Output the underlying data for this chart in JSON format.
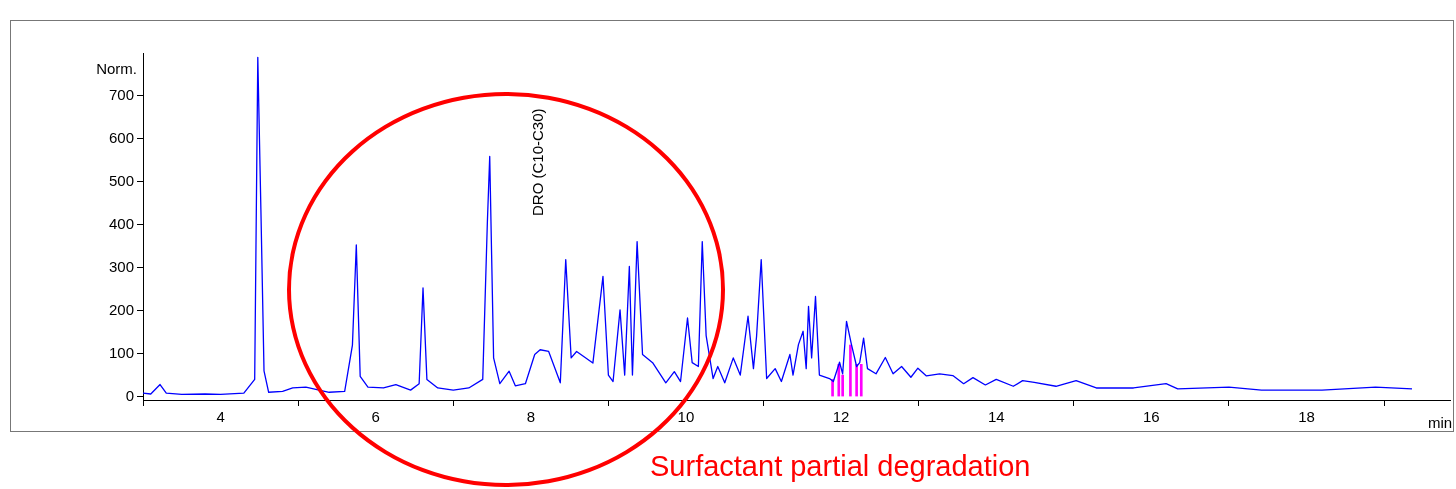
{
  "chart_data": {
    "type": "line",
    "xlabel": "min",
    "ylabel": "Norm.",
    "xlim": [
      3,
      19.85
    ],
    "ylim": [
      -8,
      800
    ],
    "xticks": [
      4,
      6,
      8,
      10,
      12,
      14,
      16,
      18
    ],
    "yticks": [
      0,
      100,
      200,
      300,
      400,
      500,
      600,
      700
    ],
    "grid": false,
    "legend": false,
    "marker": "none",
    "line_style": "solid",
    "annotations": [
      "DRO (C10-C30)",
      "Surfactant partial degradation"
    ],
    "series": [
      {
        "color": "#0000ff",
        "x": [
          3.0,
          3.1,
          3.22,
          3.3,
          3.5,
          3.8,
          4.0,
          4.3,
          4.44,
          4.48,
          4.52,
          4.56,
          4.62,
          4.8,
          4.93,
          5.1,
          5.4,
          5.6,
          5.7,
          5.75,
          5.8,
          5.9,
          6.1,
          6.26,
          6.45,
          6.56,
          6.61,
          6.66,
          6.8,
          7.0,
          7.2,
          7.38,
          7.44,
          7.47,
          7.52,
          7.6,
          7.72,
          7.8,
          7.93,
          8.05,
          8.12,
          8.23,
          8.38,
          8.45,
          8.52,
          8.59,
          8.8,
          8.93,
          9.0,
          9.06,
          9.15,
          9.21,
          9.27,
          9.31,
          9.37,
          9.44,
          9.57,
          9.74,
          9.85,
          9.93,
          10.02,
          10.08,
          10.16,
          10.21,
          10.26,
          10.35,
          10.41,
          10.5,
          10.61,
          10.7,
          10.8,
          10.87,
          10.91,
          10.97,
          11.04,
          11.15,
          11.23,
          11.34,
          11.38,
          11.45,
          11.51,
          11.55,
          11.58,
          11.62,
          11.67,
          11.72,
          11.85,
          11.9,
          11.98,
          12.02,
          12.07,
          12.13,
          12.2,
          12.24,
          12.29,
          12.34,
          12.45,
          12.57,
          12.67,
          12.78,
          12.9,
          12.99,
          13.1,
          13.27,
          13.44,
          13.58,
          13.7,
          13.86,
          14.0,
          14.22,
          14.34,
          14.49,
          14.77,
          15.03,
          15.29,
          15.77,
          16.19,
          16.34,
          17.0,
          17.42,
          18.2,
          18.89,
          19.36
        ],
        "values": [
          8,
          6,
          28,
          8,
          5,
          6,
          5,
          8,
          40,
          790,
          435,
          60,
          10,
          12,
          20,
          22,
          10,
          12,
          120,
          353,
          47,
          22,
          20,
          28,
          15,
          30,
          253,
          40,
          20,
          15,
          20,
          40,
          408,
          559,
          90,
          30,
          59,
          25,
          30,
          98,
          109,
          105,
          32,
          319,
          90,
          105,
          78,
          280,
          50,
          35,
          202,
          50,
          303,
          50,
          361,
          98,
          79,
          32,
          58,
          35,
          183,
          79,
          70,
          361,
          142,
          42,
          70,
          32,
          90,
          50,
          187,
          65,
          140,
          319,
          42,
          65,
          35,
          98,
          50,
          121,
          152,
          65,
          210,
          90,
          233,
          50,
          42,
          35,
          80,
          53,
          175,
          124,
          70,
          79,
          136,
          65,
          53,
          91,
          53,
          70,
          45,
          66,
          48,
          53,
          49,
          30,
          44,
          27,
          40,
          24,
          37,
          33,
          24,
          37,
          20,
          20,
          30,
          18,
          22,
          15,
          15,
          22,
          18
        ]
      },
      {
        "type": "bar",
        "color": "#ff00ff",
        "x": [
          11.89,
          11.97,
          12.02,
          12.12,
          12.2,
          12.26
        ],
        "values": [
          40,
          75,
          50,
          120,
          75,
          75
        ]
      }
    ]
  }
}
